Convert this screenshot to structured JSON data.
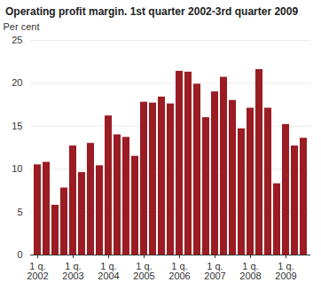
{
  "chart_data": {
    "type": "bar",
    "title": "Operating profit margin. 1st quarter 2002-3rd quarter 2009",
    "y_label": "Per cent",
    "categories": [
      "1 q.\n2002",
      null,
      null,
      null,
      "1 q.\n2003",
      null,
      null,
      null,
      "1 q.\n2004",
      null,
      null,
      null,
      "1 q.\n2005",
      null,
      null,
      null,
      "1 q.\n2006",
      null,
      null,
      null,
      "1 q.\n2007",
      null,
      null,
      null,
      "1 q.\n2008",
      null,
      null,
      null,
      "1 q.\n2009",
      null,
      null
    ],
    "values": [
      10.5,
      10.8,
      5.8,
      7.8,
      12.7,
      9.6,
      13.0,
      10.4,
      16.2,
      14.0,
      13.7,
      11.5,
      17.8,
      17.7,
      18.4,
      17.6,
      21.4,
      21.3,
      19.9,
      16.0,
      19.0,
      20.7,
      18.0,
      14.7,
      17.1,
      21.6,
      17.1,
      8.3,
      15.2,
      12.7,
      13.6
    ],
    "color": "#9b1c22",
    "ylim": [
      0,
      25
    ],
    "yticks": [
      0,
      5,
      10,
      15,
      20,
      25
    ],
    "grid": true
  }
}
